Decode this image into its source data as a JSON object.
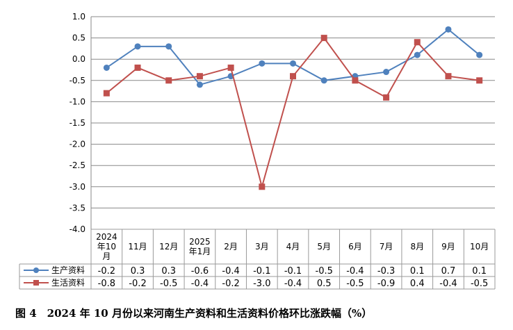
{
  "chart_data": {
    "type": "line",
    "categories": [
      [
        "2024",
        "年10",
        "月"
      ],
      [
        "11月"
      ],
      [
        "12月"
      ],
      [
        "2025",
        "年1月"
      ],
      [
        "2月"
      ],
      [
        "3月"
      ],
      [
        "4月"
      ],
      [
        "5月"
      ],
      [
        "6月"
      ],
      [
        "7月"
      ],
      [
        "8月"
      ],
      [
        "9月"
      ],
      [
        "10月"
      ]
    ],
    "ylim": [
      -4.0,
      1.0
    ],
    "yticks": [
      "1.0",
      "0.5",
      "0.0",
      "-0.5",
      "-1.0",
      "-1.5",
      "-2.0",
      "-2.5",
      "-3.0",
      "-3.5",
      "-4.0"
    ],
    "grid": true,
    "legend": "data-table-left",
    "series": [
      {
        "name": "生产资料",
        "color": "#4F81BD",
        "marker": "circle",
        "values": [
          -0.2,
          0.3,
          0.3,
          -0.6,
          -0.4,
          -0.1,
          -0.1,
          -0.5,
          -0.4,
          -0.3,
          0.1,
          0.7,
          0.1
        ],
        "labels": [
          "-0.2",
          "0.3",
          "0.3",
          "-0.6",
          "-0.4",
          "-0.1",
          "-0.1",
          "-0.5",
          "-0.4",
          "-0.3",
          "0.1",
          "0.7",
          "0.1"
        ]
      },
      {
        "name": "生活资料",
        "color": "#C0504D",
        "marker": "square",
        "values": [
          -0.8,
          -0.2,
          -0.5,
          -0.4,
          -0.2,
          -3.0,
          -0.4,
          0.5,
          -0.5,
          -0.9,
          0.4,
          -0.4,
          -0.5
        ],
        "labels": [
          "-0.8",
          "-0.2",
          "-0.5",
          "-0.4",
          "-0.2",
          "-3.0",
          "-0.4",
          "0.5",
          "-0.5",
          "-0.9",
          "0.4",
          "-0.4",
          "-0.5"
        ]
      }
    ]
  },
  "caption": "图 4　2024 年 10 月份以来河南生产资料和生活资料价格环比涨跌幅（%）"
}
